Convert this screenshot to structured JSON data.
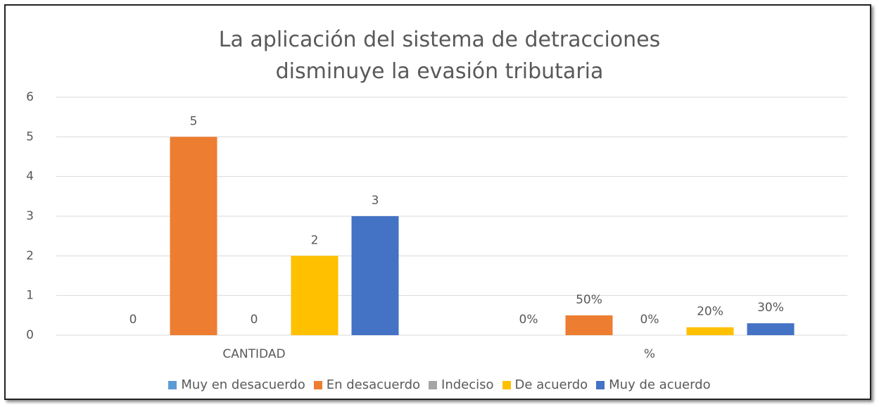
{
  "chart_data": {
    "type": "bar",
    "title": "La aplicación del sistema de detracciones disminuye la evasión tributaria",
    "categories": [
      "CANTIDAD",
      "%"
    ],
    "series": [
      {
        "name": "Muy en desacuerdo",
        "color": "#5b9bd5",
        "values": [
          0,
          0
        ],
        "value_labels": [
          "0",
          "0%"
        ]
      },
      {
        "name": "En desacuerdo",
        "color": "#ed7d31",
        "values": [
          5,
          0.5
        ],
        "value_labels": [
          "5",
          "50%"
        ]
      },
      {
        "name": "Indeciso",
        "color": "#a5a5a5",
        "values": [
          0,
          0
        ],
        "value_labels": [
          "0",
          "0%"
        ]
      },
      {
        "name": "De acuerdo",
        "color": "#ffc000",
        "values": [
          2,
          0.2
        ],
        "value_labels": [
          "2",
          "20%"
        ]
      },
      {
        "name": "Muy de acuerdo",
        "color": "#4472c4",
        "values": [
          3,
          0.3
        ],
        "value_labels": [
          "3",
          "30%"
        ]
      }
    ],
    "ylim": [
      0,
      6
    ],
    "yticks": [
      0,
      1,
      2,
      3,
      4,
      5,
      6
    ],
    "grid": true,
    "legend": "bottom"
  }
}
